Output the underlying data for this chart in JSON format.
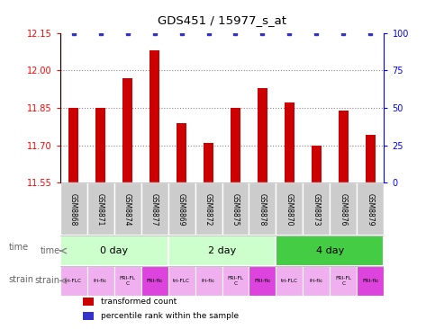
{
  "title": "GDS451 / 15977_s_at",
  "samples": [
    "GSM8868",
    "GSM8871",
    "GSM8874",
    "GSM8877",
    "GSM8869",
    "GSM8872",
    "GSM8875",
    "GSM8878",
    "GSM8870",
    "GSM8873",
    "GSM8876",
    "GSM8879"
  ],
  "bar_values": [
    11.85,
    11.85,
    11.97,
    12.08,
    11.79,
    11.71,
    11.85,
    11.93,
    11.87,
    11.7,
    11.84,
    11.74
  ],
  "percentile_values": [
    100,
    100,
    100,
    100,
    100,
    100,
    100,
    100,
    100,
    100,
    100,
    100
  ],
  "bar_color": "#cc0000",
  "percentile_color": "#3333cc",
  "ylim_left": [
    11.55,
    12.15
  ],
  "ylim_right": [
    0,
    100
  ],
  "yticks_left": [
    11.55,
    11.7,
    11.85,
    12.0,
    12.15
  ],
  "yticks_right": [
    0,
    25,
    50,
    75,
    100
  ],
  "dotted_lines": [
    11.7,
    11.85,
    12.0
  ],
  "time_groups": [
    {
      "label": "0 day",
      "start": 0,
      "end": 4,
      "color": "#ccffcc"
    },
    {
      "label": "2 day",
      "start": 4,
      "end": 8,
      "color": "#ccffcc"
    },
    {
      "label": "4 day",
      "start": 8,
      "end": 12,
      "color": "#44cc44"
    }
  ],
  "strain_labels": [
    "tri-FLC",
    "fri-flc",
    "FRI-FL\nC",
    "FRI-flc",
    "tri-FLC",
    "fri-flc",
    "FRI-FL\nC",
    "FRI-flc",
    "tri-FLC",
    "fri-flc",
    "FRI-FL\nC",
    "FRI-flc"
  ],
  "strain_colors": [
    "#f0b0f0",
    "#f0b0f0",
    "#f0b0f0",
    "#dd44dd",
    "#f0b0f0",
    "#f0b0f0",
    "#f0b0f0",
    "#dd44dd",
    "#f0b0f0",
    "#f0b0f0",
    "#f0b0f0",
    "#dd44dd"
  ],
  "sample_box_color": "#cccccc",
  "legend_items": [
    {
      "label": "transformed count",
      "color": "#cc0000"
    },
    {
      "label": "percentile rank within the sample",
      "color": "#3333cc"
    }
  ],
  "bar_width": 0.35
}
